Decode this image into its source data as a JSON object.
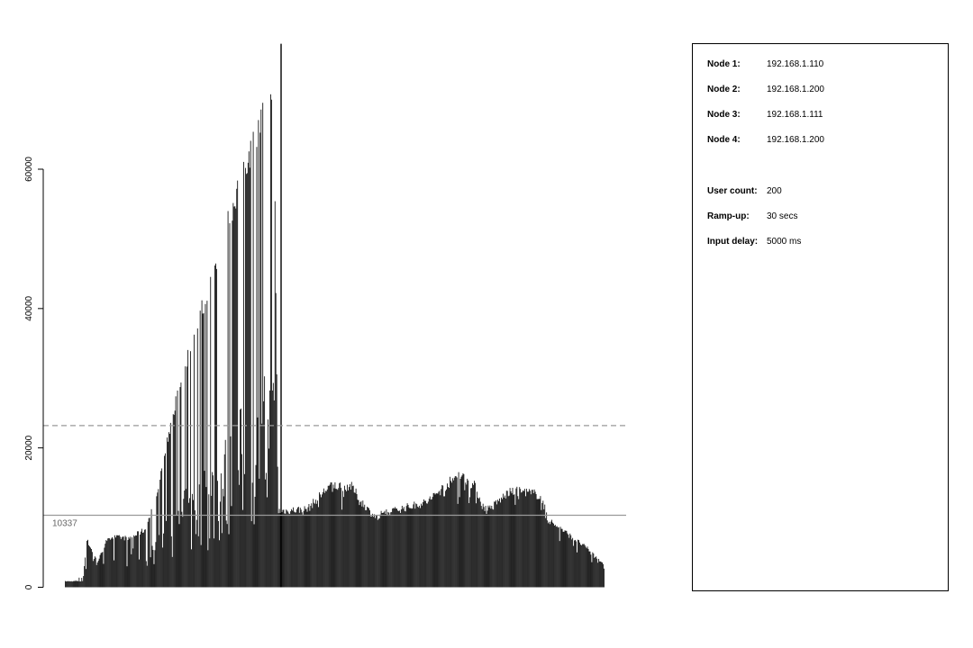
{
  "chart_data": {
    "type": "bar",
    "title": "",
    "xlabel": "",
    "ylabel": "",
    "ylim": [
      0,
      78000
    ],
    "yticks": [
      0,
      20000,
      40000,
      60000
    ],
    "grid": false,
    "legend": "none",
    "bar_color": "#000000",
    "n_bars": 620,
    "envelope": [
      {
        "x": 0.0,
        "y": 900
      },
      {
        "x": 0.033,
        "y": 900
      },
      {
        "x": 0.04,
        "y": 7200
      },
      {
        "x": 0.06,
        "y": 3800
      },
      {
        "x": 0.08,
        "y": 7600
      },
      {
        "x": 0.12,
        "y": 7400
      },
      {
        "x": 0.15,
        "y": 8800
      },
      {
        "x": 0.17,
        "y": 14000
      },
      {
        "x": 0.2,
        "y": 26000
      },
      {
        "x": 0.24,
        "y": 38000
      },
      {
        "x": 0.28,
        "y": 48000
      },
      {
        "x": 0.33,
        "y": 62000
      },
      {
        "x": 0.36,
        "y": 68000
      },
      {
        "x": 0.38,
        "y": 74500
      },
      {
        "x": 0.387,
        "y": 76000
      },
      {
        "x": 0.395,
        "y": 11500
      },
      {
        "x": 0.45,
        "y": 11800
      },
      {
        "x": 0.49,
        "y": 15300
      },
      {
        "x": 0.53,
        "y": 15300
      },
      {
        "x": 0.56,
        "y": 11800
      },
      {
        "x": 0.58,
        "y": 10400
      },
      {
        "x": 0.62,
        "y": 11800
      },
      {
        "x": 0.67,
        "y": 12800
      },
      {
        "x": 0.71,
        "y": 15600
      },
      {
        "x": 0.73,
        "y": 17100
      },
      {
        "x": 0.76,
        "y": 15300
      },
      {
        "x": 0.78,
        "y": 11100
      },
      {
        "x": 0.82,
        "y": 14200
      },
      {
        "x": 0.85,
        "y": 14600
      },
      {
        "x": 0.88,
        "y": 13900
      },
      {
        "x": 0.9,
        "y": 10000
      },
      {
        "x": 0.94,
        "y": 7600
      },
      {
        "x": 0.97,
        "y": 5800
      },
      {
        "x": 1.0,
        "y": 3500
      }
    ],
    "lower_envelope": [
      {
        "x": 0.0,
        "y": 0
      },
      {
        "x": 0.04,
        "y": 2500
      },
      {
        "x": 0.15,
        "y": 3000
      },
      {
        "x": 0.2,
        "y": 3800
      },
      {
        "x": 0.25,
        "y": 4500
      },
      {
        "x": 0.3,
        "y": 6500
      },
      {
        "x": 0.35,
        "y": 8800
      },
      {
        "x": 0.39,
        "y": 9600
      },
      {
        "x": 0.45,
        "y": 10500
      },
      {
        "x": 0.55,
        "y": 11000
      },
      {
        "x": 0.65,
        "y": 11500
      },
      {
        "x": 0.75,
        "y": 12000
      },
      {
        "x": 0.88,
        "y": 11000
      },
      {
        "x": 0.92,
        "y": 6000
      },
      {
        "x": 1.0,
        "y": 2000
      }
    ],
    "spike_value": 78000,
    "reference_lines": [
      {
        "value": 23200,
        "style": "dashed",
        "color": "#999999"
      },
      {
        "value": 10337,
        "style": "solid",
        "color": "#999999",
        "label": "10337"
      }
    ]
  },
  "info": {
    "nodes": [
      {
        "key": "Node 1:",
        "value": "192.168.1.110"
      },
      {
        "key": "Node 2:",
        "value": "192.168.1.200"
      },
      {
        "key": "Node 3:",
        "value": "192.168.1.111"
      },
      {
        "key": "Node 4:",
        "value": "192.168.1.200"
      }
    ],
    "settings": [
      {
        "key": "User count:",
        "value": "200"
      },
      {
        "key": "Ramp-up:",
        "value": "30 secs"
      },
      {
        "key": "Input delay:",
        "value": "5000 ms"
      }
    ]
  }
}
